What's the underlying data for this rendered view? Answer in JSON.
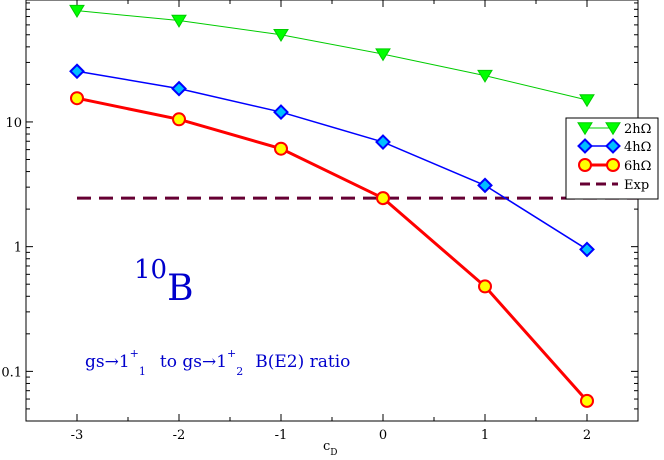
{
  "chart_data": {
    "type": "line",
    "xlabel": "c",
    "xlabel_sub": "D",
    "ylabel": "",
    "x": [
      -3,
      -2,
      -1,
      0,
      1,
      2
    ],
    "xlim": [
      -3.5,
      2.5
    ],
    "ylim": [
      0.04,
      95
    ],
    "yscale": "log",
    "x_ticks": [
      -3,
      -2,
      -1,
      0,
      1,
      2
    ],
    "x_tick_labels": [
      "-3",
      "-2",
      "-1",
      "0",
      "1",
      "2"
    ],
    "y_ticks": [
      0.1,
      1,
      10
    ],
    "y_tick_labels": [
      "0.1",
      "1",
      "10"
    ],
    "grid": false,
    "legend_position": "right",
    "series": [
      {
        "name": "2hΩ",
        "values": [
          78,
          65,
          50,
          35,
          23.5,
          15
        ],
        "color": "#00cc00",
        "fill": "#00ff00",
        "marker": "triangle-down"
      },
      {
        "name": "4hΩ",
        "values": [
          25.5,
          18.5,
          12,
          6.9,
          3.1,
          0.95
        ],
        "color": "#0000ff",
        "fill": "#00bfff",
        "marker": "diamond"
      },
      {
        "name": "6hΩ",
        "values": [
          15.5,
          10.5,
          6.1,
          2.45,
          0.48,
          0.058
        ],
        "color": "#ff0000",
        "fill": "#ffff00",
        "marker": "circle"
      }
    ],
    "reference_line": {
      "name": "Exp",
      "value": 2.45,
      "color": "#660033",
      "style": "dashed"
    },
    "annotations": {
      "nucleus_sup": "10",
      "nucleus": "B",
      "ratio": {
        "p1": "gs→1",
        "sup1": "+",
        "sub1": "1",
        "p2": "to  gs→1",
        "sup2": "+",
        "sub2": "2",
        "p3": "B(E2) ratio"
      }
    }
  }
}
